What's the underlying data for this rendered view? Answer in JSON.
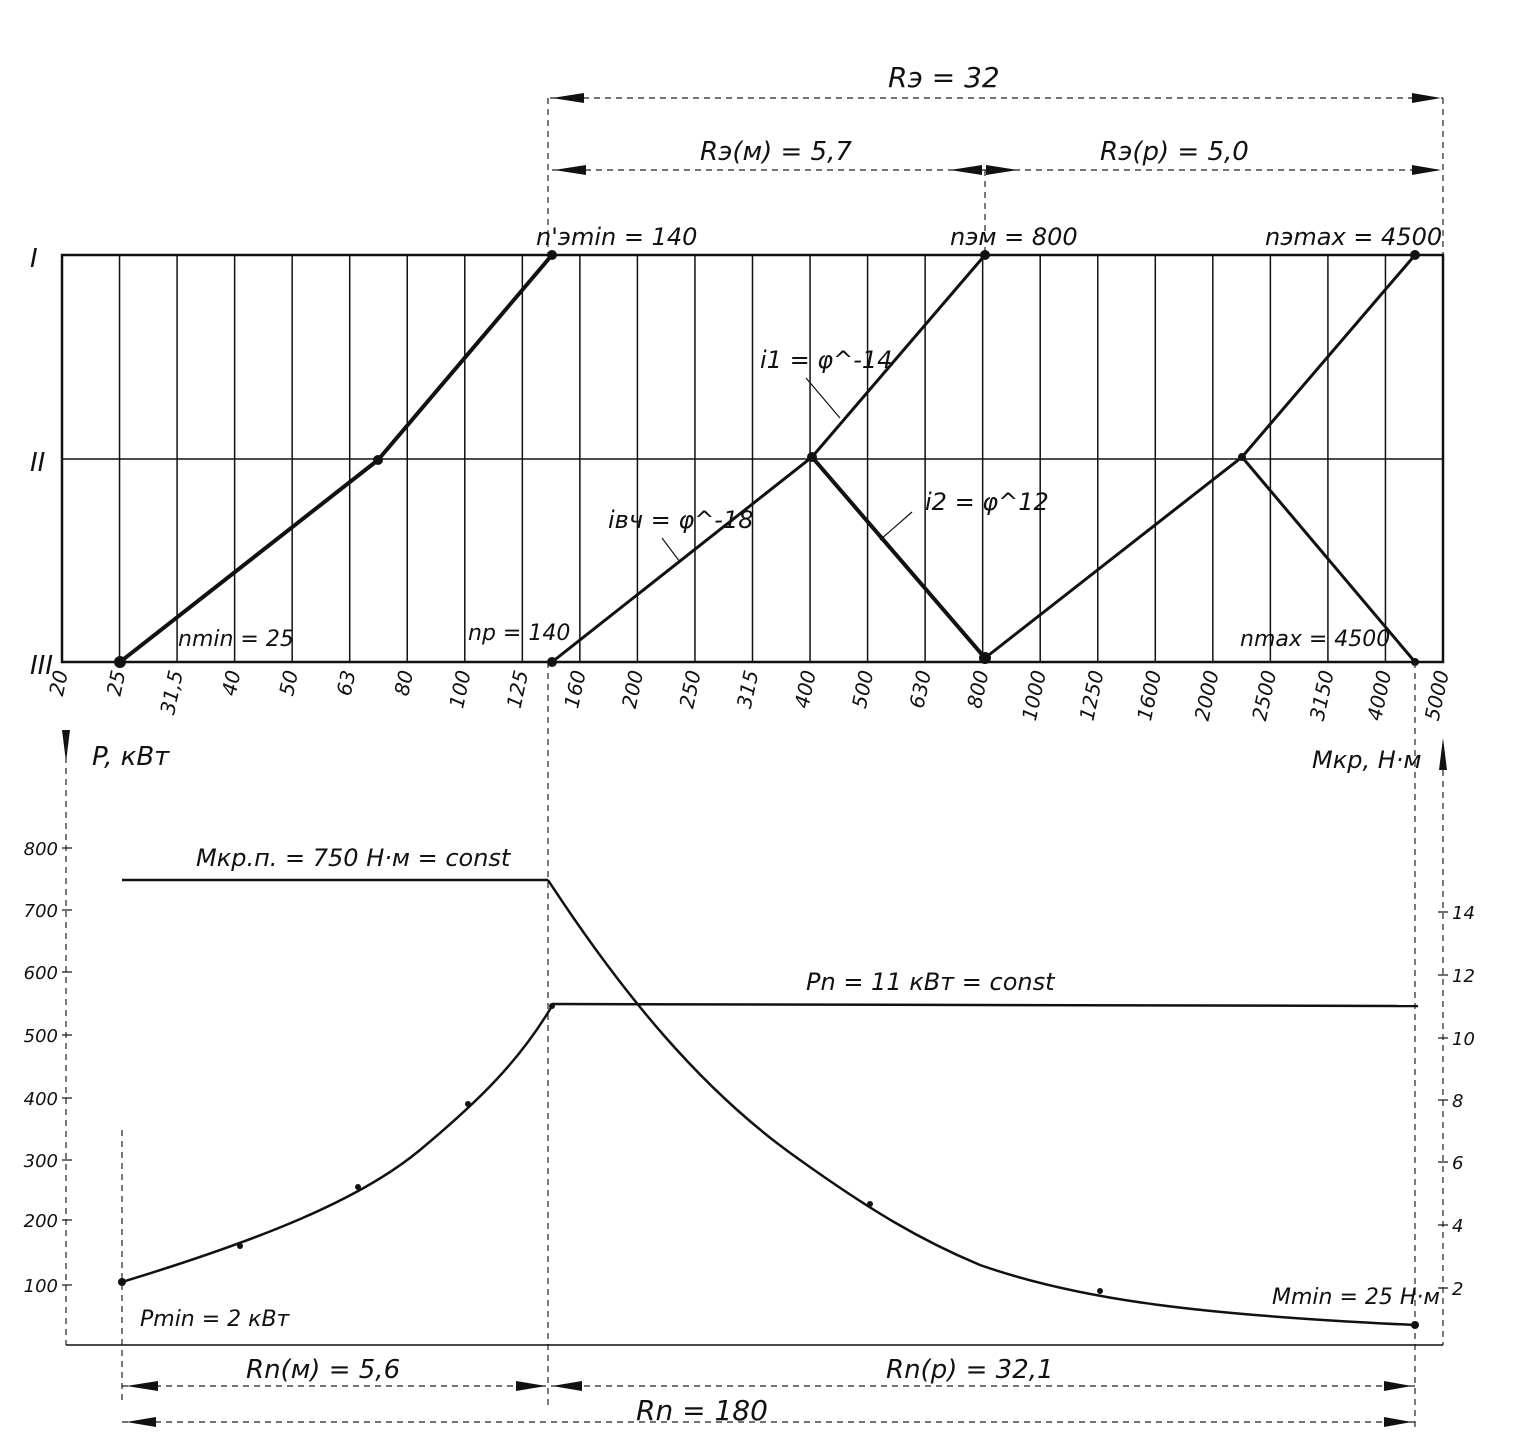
{
  "dimensions": {
    "re_total": "Rэ = 32",
    "re_m": "Rэ(м) = 5,7",
    "re_p": "Rэ(р) = 5,0",
    "rn_m": "Rn(м) = 5,6",
    "rn_p": "Rn(р) = 32,1",
    "rn_total": "Rn = 180"
  },
  "speed_diagram": {
    "shaft_labels": [
      "I",
      "II",
      "III"
    ],
    "x_ticks": [
      "20",
      "25",
      "31,5",
      "40",
      "50",
      "63",
      "80",
      "100",
      "125",
      "160",
      "200",
      "250",
      "315",
      "400",
      "500",
      "630",
      "800",
      "1000",
      "1250",
      "1600",
      "2000",
      "2500",
      "3150",
      "4000",
      "5000"
    ],
    "labels": {
      "n_e_min": "n'эmin = 140",
      "n_em": "nэм = 800",
      "n_e_max": "nэmax = 4500",
      "i1": "i1 = φ^-14",
      "i2": "i2 = φ^12",
      "i_v": "iвч = φ^-18",
      "n_min": "nmin = 25",
      "n_p": "np = 140",
      "n_max": "nmax = 4500"
    }
  },
  "power_diagram": {
    "left_axis_label": "P, кВт",
    "right_axis_label": "Mкр, Н·м",
    "left_ticks": [
      "800",
      "700",
      "600",
      "500",
      "400",
      "300",
      "200",
      "100"
    ],
    "right_ticks": [
      "14",
      "12",
      "10",
      "8",
      "6",
      "4",
      "2"
    ],
    "labels": {
      "m_top": "Mкр.п. = 750 Н·м = const",
      "p_n": "Pn = 11 кВт = const",
      "p_min": "Pmin = 2 кВт",
      "m_min": "Mmin = 25 Н·м"
    }
  }
}
